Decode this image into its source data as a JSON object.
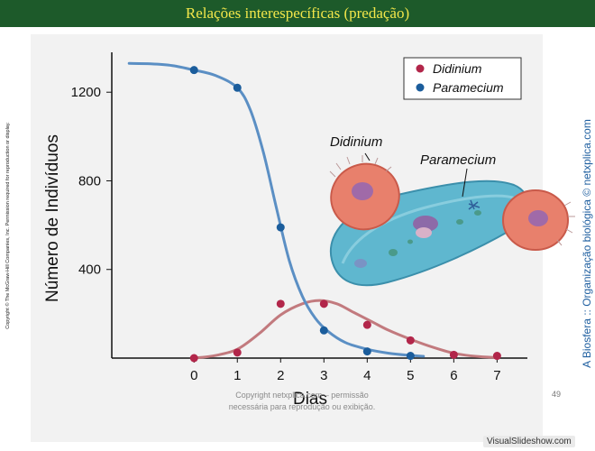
{
  "header": {
    "title": "Relações interespecíficas (predação)"
  },
  "side": {
    "copyright": "Copyright © The McGraw-Hill Companies, Inc. Permission required for reproduction or display.",
    "credit": "A Biosfera :: Organização biológica © netxplica.com"
  },
  "watermark": {
    "line1": "Copyright netxplica.com – permissão",
    "line2": "necessária para reprodução ou exibição."
  },
  "page_number": "49",
  "site_badge": "VisualSlideshow.com",
  "illustration": {
    "label_predator": "Didinium",
    "label_prey": "Paramecium"
  },
  "colors": {
    "header_bg": "#1d5a2a",
    "header_text": "#f2e64a",
    "didinium": "#b2264a",
    "paramecium": "#1b5d9c",
    "didinium_curve": "#c27a7e",
    "paramecium_curve": "#5b8fc4"
  },
  "chart_data": {
    "type": "scatter",
    "xlabel": "Dias",
    "ylabel": "Número de Indivíduos",
    "x_ticks": [
      "0",
      "1",
      "2",
      "3",
      "4",
      "5",
      "6",
      "7"
    ],
    "y_ticks": [
      "400",
      "800",
      "1200"
    ],
    "xlim": [
      -1.9,
      7.7
    ],
    "ylim": [
      0,
      1380
    ],
    "grid": false,
    "legend_position": "top-right",
    "series": [
      {
        "name": "Didinium",
        "color": "#b2264a",
        "x": [
          0,
          1,
          2,
          3,
          4,
          5,
          6,
          7
        ],
        "y": [
          0,
          25,
          245,
          245,
          150,
          80,
          15,
          10
        ],
        "trend_x": [
          0,
          0.5,
          1,
          1.5,
          2,
          2.5,
          2.9,
          3.3,
          3.7,
          4.1,
          4.5,
          5,
          5.5,
          6,
          6.5,
          7
        ],
        "trend_y": [
          0,
          12,
          40,
          110,
          195,
          245,
          260,
          245,
          205,
          165,
          125,
          85,
          50,
          22,
          8,
          2
        ]
      },
      {
        "name": "Paramecium",
        "color": "#1b5d9c",
        "x": [
          0,
          1,
          2,
          3,
          4,
          5
        ],
        "y": [
          1300,
          1220,
          590,
          125,
          30,
          10
        ],
        "trend_x": [
          -1.5,
          -1,
          -0.5,
          0,
          0.5,
          1,
          1.3,
          1.6,
          1.9,
          2.2,
          2.5,
          2.8,
          3.1,
          3.5,
          4,
          4.5,
          5,
          5.3
        ],
        "trend_y": [
          1330,
          1328,
          1320,
          1300,
          1275,
          1220,
          1120,
          930,
          680,
          440,
          280,
          180,
          120,
          70,
          40,
          22,
          12,
          8
        ]
      }
    ]
  }
}
